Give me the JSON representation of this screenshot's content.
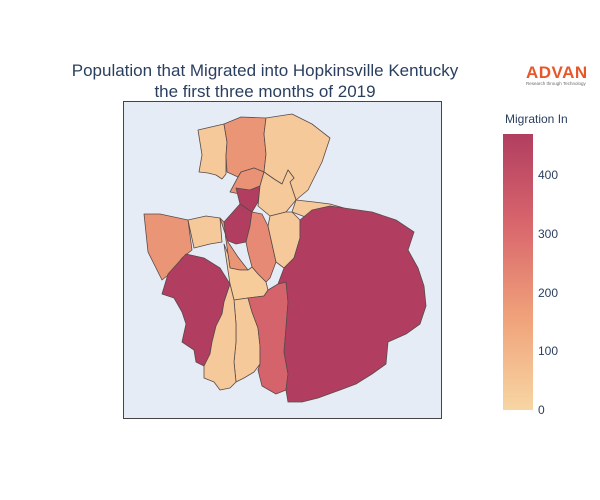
{
  "title": {
    "line1": "Population that Migrated into Hopkinsville Kentucky",
    "line2": "the first three months of 2019"
  },
  "logo": {
    "word": "ADVAN",
    "tagline": "Research through Technology",
    "color": "#e8572a"
  },
  "colorbar": {
    "title": "Migration In",
    "min": 0,
    "max": 470,
    "ticks": [
      "0",
      "100",
      "200",
      "300",
      "400"
    ],
    "tick_values": [
      0,
      100,
      200,
      300,
      400
    ],
    "colorscale": [
      "#f7d6a3",
      "#f0a27a",
      "#d9676d",
      "#b13e60"
    ]
  },
  "map": {
    "background": "#e5ecf6",
    "border_color": "#444444",
    "regions": [
      {
        "id": "north-west-tract",
        "value": 40
      },
      {
        "id": "north-center-tract",
        "value": 190
      },
      {
        "id": "north-east-tract",
        "value": 40
      },
      {
        "id": "upper-mid-west-tract",
        "value": 200
      },
      {
        "id": "small-dark-north-tract",
        "value": 470
      },
      {
        "id": "upper-mid-east-tract",
        "value": 40
      },
      {
        "id": "west-tract",
        "value": 190
      },
      {
        "id": "west-center-small-tract",
        "value": 40
      },
      {
        "id": "center-dark-tract",
        "value": 470
      },
      {
        "id": "center-left-orange-tract",
        "value": 190
      },
      {
        "id": "center-orange-tract",
        "value": 220
      },
      {
        "id": "center-right-tract",
        "value": 40
      },
      {
        "id": "far-east-small-tract",
        "value": 40
      },
      {
        "id": "south-west-dark-tract",
        "value": 470
      },
      {
        "id": "center-south-tract",
        "value": 30
      },
      {
        "id": "south-center-tract",
        "value": 40
      },
      {
        "id": "south-tract",
        "value": 40
      },
      {
        "id": "south-red-tract",
        "value": 330
      },
      {
        "id": "east-large-tract",
        "value": 470
      }
    ]
  }
}
